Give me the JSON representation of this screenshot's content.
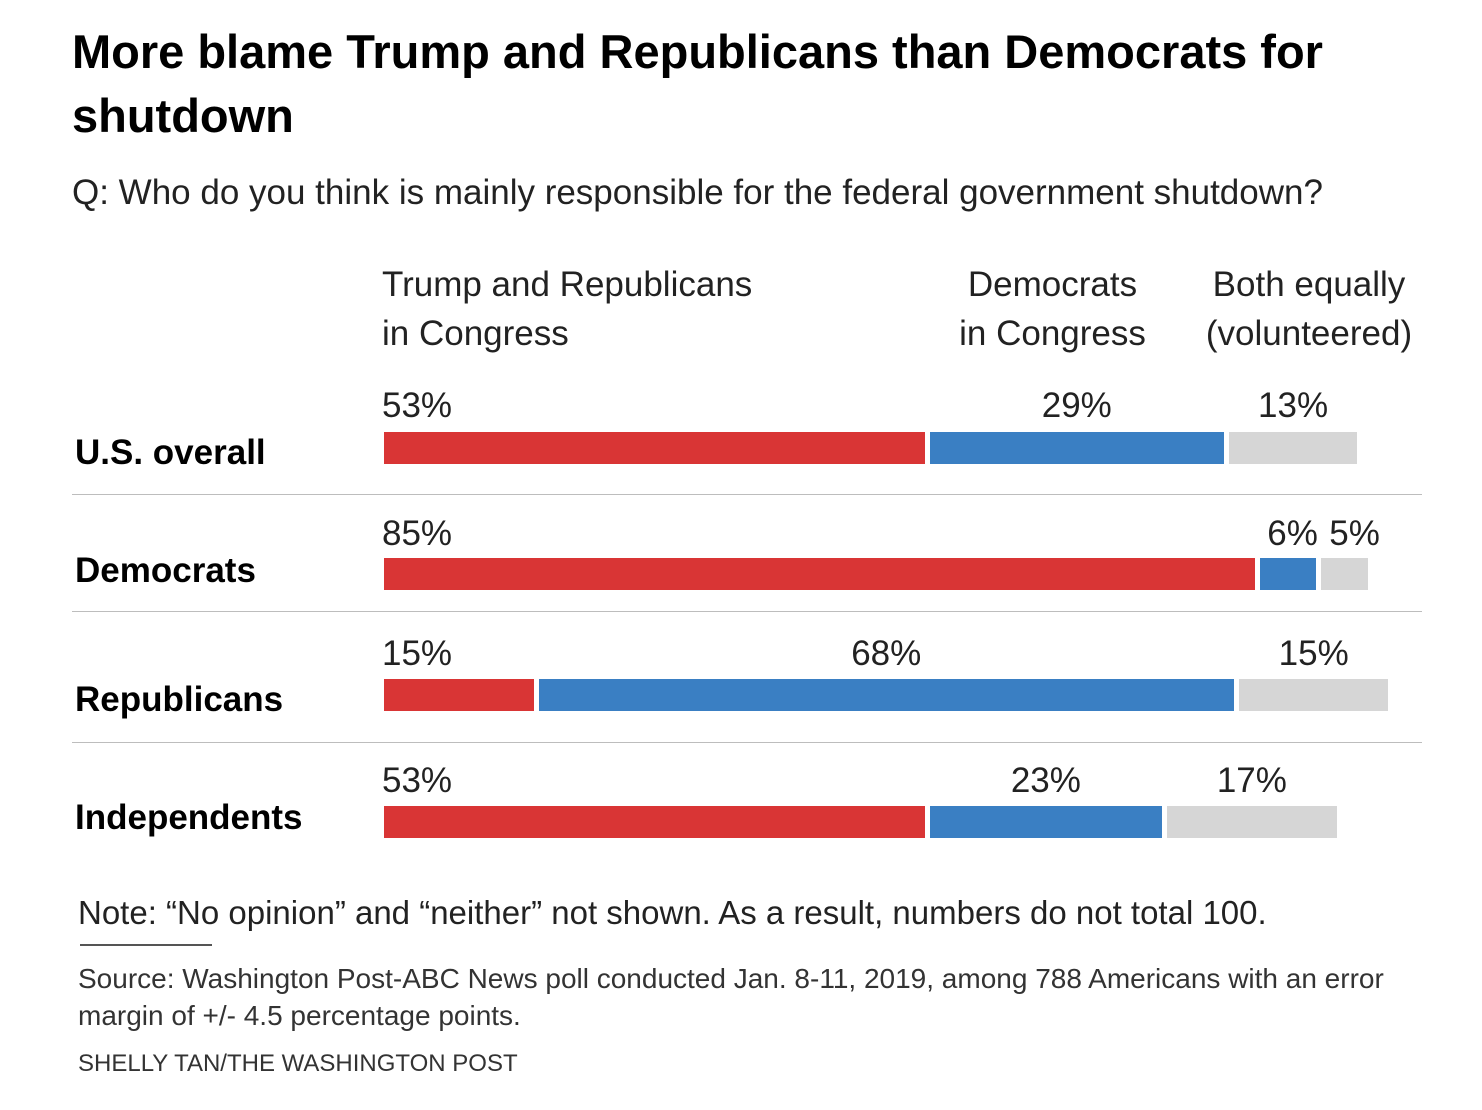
{
  "title": "More blame Trump and Republicans than Democrats for shutdown",
  "subtitle": "Q: Who do you think is mainly responsible for the federal government shutdown?",
  "columns": [
    {
      "line1": "Trump and Republicans",
      "line2": "in Congress"
    },
    {
      "line1": "Democrats",
      "line2": "in Congress"
    },
    {
      "line1": "Both equally",
      "line2": "(volunteered)"
    }
  ],
  "colors": {
    "trump_republicans": "#d93535",
    "democrats": "#3a7fc3",
    "both_equally": "#d6d6d6"
  },
  "note": "Note: “No opinion” and “neither” not shown. As a result, numbers do not total 100.",
  "source": "Source: Washington Post-ABC News poll conducted Jan. 8-11, 2019, among 788 Americans with an error margin of +/- 4.5 percentage points.",
  "credit": "SHELLY TAN/THE WASHINGTON POST",
  "chart_data": {
    "type": "bar",
    "orientation": "horizontal",
    "stacked": true,
    "title": "More blame Trump and Republicans than Democrats for shutdown",
    "subtitle": "Q: Who do you think is mainly responsible for the federal government shutdown?",
    "categories": [
      "U.S. overall",
      "Democrats",
      "Republicans",
      "Independents"
    ],
    "series": [
      {
        "name": "Trump and Republicans in Congress",
        "values": [
          53,
          85,
          15,
          53
        ],
        "labels": [
          "53%",
          "85%",
          "15%",
          "53%"
        ]
      },
      {
        "name": "Democrats in Congress",
        "values": [
          29,
          6,
          68,
          23
        ],
        "labels": [
          "29%",
          "6%",
          "68%",
          "23%"
        ]
      },
      {
        "name": "Both equally (volunteered)",
        "values": [
          13,
          5,
          15,
          17
        ],
        "labels": [
          "13%",
          "5%",
          "15%",
          "17%"
        ]
      }
    ],
    "unit": "%",
    "xlim": [
      0,
      100
    ],
    "grid": false,
    "legend": "column headers above bars"
  }
}
